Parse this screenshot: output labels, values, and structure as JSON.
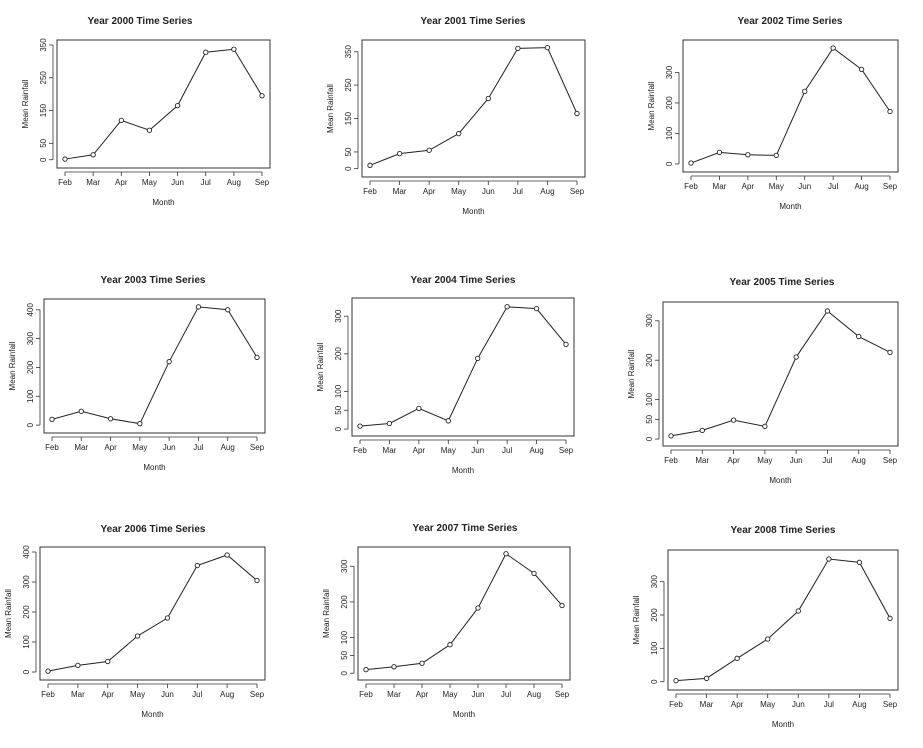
{
  "chart_data": [
    {
      "type": "line",
      "title": "Year 2000 Time Series",
      "xlabel": "Month",
      "ylabel": "Mean Rainfall",
      "categories": [
        "Feb",
        "Mar",
        "Apr",
        "May",
        "Jun",
        "Jul",
        "Aug",
        "Sep"
      ],
      "values": [
        2,
        15,
        120,
        90,
        165,
        328,
        337,
        195
      ],
      "yticks": [
        0,
        50,
        150,
        250,
        350
      ],
      "ylim": [
        -10,
        350
      ]
    },
    {
      "type": "line",
      "title": "Year 2001 Time Series",
      "xlabel": "Month",
      "ylabel": "Mean Rainfall",
      "categories": [
        "Feb",
        "Mar",
        "Apr",
        "May",
        "Jun",
        "Jul",
        "Aug",
        "Sep"
      ],
      "values": [
        10,
        45,
        55,
        105,
        210,
        360,
        362,
        165
      ],
      "yticks": [
        0,
        50,
        150,
        250,
        350
      ],
      "ylim": [
        -10,
        370
      ]
    },
    {
      "type": "line",
      "title": "Year 2002 Time Series",
      "xlabel": "Month",
      "ylabel": "Mean Rainfall",
      "categories": [
        "Feb",
        "Mar",
        "Apr",
        "May",
        "Jun",
        "Jul",
        "Aug",
        "Sep"
      ],
      "values": [
        3,
        38,
        30,
        28,
        238,
        380,
        310,
        172
      ],
      "yticks": [
        0,
        100,
        200,
        300
      ],
      "ylim": [
        -10,
        390
      ]
    },
    {
      "type": "line",
      "title": "Year 2003 Time Series",
      "xlabel": "Month",
      "ylabel": "Mean Rainfall",
      "categories": [
        "Feb",
        "Mar",
        "Apr",
        "May",
        "Jun",
        "Jul",
        "Aug",
        "Sep"
      ],
      "values": [
        20,
        48,
        22,
        5,
        220,
        410,
        400,
        235
      ],
      "yticks": [
        0,
        100,
        200,
        300,
        400
      ],
      "ylim": [
        -10,
        420
      ]
    },
    {
      "type": "line",
      "title": "Year 2004 Time Series",
      "xlabel": "Month",
      "ylabel": "Mean Rainfall",
      "categories": [
        "Feb",
        "Mar",
        "Apr",
        "May",
        "Jun",
        "Jul",
        "Aug",
        "Sep"
      ],
      "values": [
        8,
        15,
        55,
        22,
        188,
        325,
        320,
        225
      ],
      "yticks": [
        0,
        50,
        100,
        200,
        300
      ],
      "ylim": [
        -5,
        335
      ]
    },
    {
      "type": "line",
      "title": "Year 2005 Time Series",
      "xlabel": "Month",
      "ylabel": "Mean Rainfall",
      "categories": [
        "Feb",
        "Mar",
        "Apr",
        "May",
        "Jun",
        "Jul",
        "Aug",
        "Sep"
      ],
      "values": [
        8,
        22,
        48,
        32,
        208,
        325,
        260,
        220
      ],
      "yticks": [
        0,
        50,
        100,
        200,
        300
      ],
      "ylim": [
        -5,
        335
      ]
    },
    {
      "type": "line",
      "title": "Year 2006 Time Series",
      "xlabel": "Month",
      "ylabel": "Mean Rainfall",
      "categories": [
        "Feb",
        "Mar",
        "Apr",
        "May",
        "Jun",
        "Jul",
        "Aug",
        "Sep"
      ],
      "values": [
        3,
        22,
        35,
        120,
        180,
        355,
        390,
        305
      ],
      "yticks": [
        0,
        100,
        200,
        300,
        400
      ],
      "ylim": [
        -10,
        400
      ]
    },
    {
      "type": "line",
      "title": "Year 2007 Time Series",
      "xlabel": "Month",
      "ylabel": "Mean Rainfall",
      "categories": [
        "Feb",
        "Mar",
        "Apr",
        "May",
        "Jun",
        "Jul",
        "Aug",
        "Sep"
      ],
      "values": [
        10,
        18,
        28,
        80,
        183,
        335,
        280,
        190
      ],
      "yticks": [
        0,
        50,
        100,
        200,
        300
      ],
      "ylim": [
        -5,
        340
      ]
    },
    {
      "type": "line",
      "title": "Year 2008 Time Series",
      "xlabel": "Month",
      "ylabel": "Mean Rainfall",
      "categories": [
        "Feb",
        "Mar",
        "Apr",
        "May",
        "Jun",
        "Jul",
        "Aug",
        "Sep"
      ],
      "values": [
        3,
        10,
        70,
        128,
        212,
        368,
        358,
        190
      ],
      "yticks": [
        0,
        100,
        200,
        300
      ],
      "ylim": [
        -10,
        380
      ]
    }
  ]
}
